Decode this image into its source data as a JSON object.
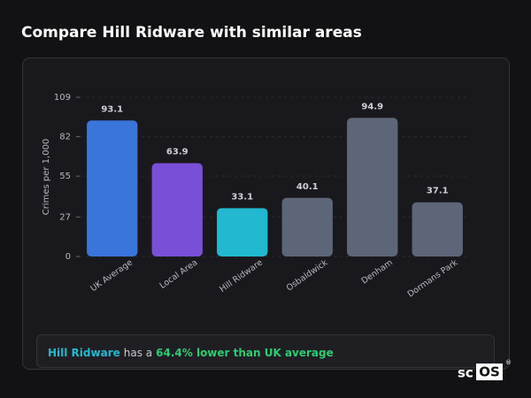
{
  "chart_data": {
    "type": "bar",
    "title": "Compare Hill Ridware with similar areas",
    "y_label": "Crimes per 1,000",
    "categories": [
      "UK Average",
      "Local Area",
      "Hill Ridware",
      "Osbaldwick",
      "Denham",
      "Dormans Park"
    ],
    "values": [
      93.1,
      63.9,
      33.1,
      40.1,
      94.9,
      37.1
    ],
    "colors": [
      "#3a75db",
      "#7a4fd8",
      "#22b9d0",
      "#5d6678",
      "#5d6678",
      "#5d6678"
    ],
    "ylim": [
      0,
      109
    ],
    "yticks": [
      0,
      27,
      55,
      82,
      109
    ],
    "grid": true
  },
  "summary": {
    "area": "Hill Ridware",
    "connector": "has a",
    "highlight": "64.4% lower than UK average"
  },
  "logo": {
    "prefix": "sc",
    "boxed": "OS",
    "mark": "®"
  }
}
